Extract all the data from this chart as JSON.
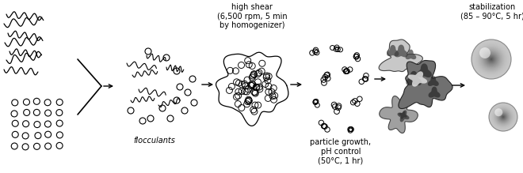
{
  "bg_color": "#ffffff",
  "text_color": "#000000",
  "label_flocculants": "flocculants",
  "label_high_shear": "high shear\n(6,500 rpm, 5 min\nby homogenizer)",
  "label_particle": "particle growth,\npH control\n(50°C, 1 hr)",
  "label_stabilization": "stabilization\n(85 – 90°C, 5 hr)",
  "figsize": [
    6.6,
    2.19
  ],
  "dpi": 100,
  "arrow_color": "#000000",
  "line_color": "#000000",
  "font_size_label": 7.0
}
